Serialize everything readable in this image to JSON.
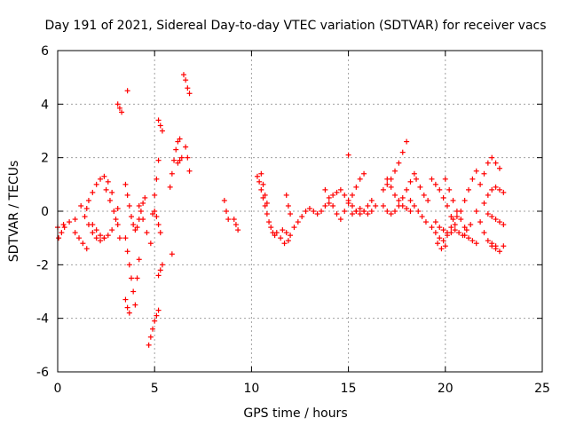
{
  "chart_data": {
    "type": "scatter",
    "title": "Day 191 of 2021, Sidereal Day-to-day VTEC variation (SDTVAR) for receiver vacs",
    "xlabel": "GPS time / hours",
    "ylabel": "SDTVAR / TECUs",
    "xlim": [
      0,
      25
    ],
    "ylim": [
      -6,
      6
    ],
    "xticks": [
      "0",
      "5",
      "10",
      "15",
      "20",
      "25"
    ],
    "yticks": [
      "-6",
      "-4",
      "-2",
      "0",
      "2",
      "4",
      "6"
    ],
    "grid": true,
    "marker": "+",
    "marker_color": "#ff0000",
    "series_segments": [
      {
        "x": [
          0.0,
          0.3,
          0.6,
          0.9
        ],
        "y": [
          -0.6,
          -0.5,
          -0.4,
          -0.3
        ]
      },
      {
        "x": [
          0.05,
          0.2,
          0.35
        ],
        "y": [
          -1.0,
          -0.8,
          -0.6
        ]
      },
      {
        "x": [
          0.9,
          1.1,
          1.3,
          1.5
        ],
        "y": [
          -0.8,
          -1.0,
          -1.2,
          -1.4
        ]
      },
      {
        "x": [
          1.5,
          1.6,
          1.8,
          2.0,
          2.2,
          2.4,
          2.6,
          2.8
        ],
        "y": [
          0.1,
          0.4,
          0.7,
          1.0,
          1.2,
          1.3,
          1.1,
          0.7
        ]
      },
      {
        "x": [
          1.2,
          1.4,
          1.6,
          1.8,
          2.0,
          2.2,
          2.4,
          2.6,
          2.8,
          3.0,
          3.1
        ],
        "y": [
          0.2,
          -0.2,
          -0.5,
          -0.8,
          -1.0,
          -1.1,
          -1.0,
          -0.9,
          -0.7,
          -0.3,
          0.1
        ]
      },
      {
        "x": [
          2.5,
          2.7,
          2.9,
          3.1,
          3.2
        ],
        "y": [
          0.8,
          0.4,
          0.0,
          -0.5,
          -1.0
        ]
      },
      {
        "x": [
          1.8,
          2.0,
          2.2,
          2.4
        ],
        "y": [
          -0.5,
          -0.7,
          -0.9,
          -1.0
        ]
      },
      {
        "x": [
          3.1,
          3.2,
          3.3
        ],
        "y": [
          4.0,
          3.85,
          3.7
        ]
      },
      {
        "x": [
          3.6
        ],
        "y": [
          4.5
        ]
      },
      {
        "x": [
          3.5,
          3.6,
          3.7,
          3.8,
          3.9,
          4.0,
          4.1,
          4.2
        ],
        "y": [
          -1.0,
          -1.5,
          -2.0,
          -2.5,
          -3.0,
          -3.5,
          -2.5,
          -1.8
        ]
      },
      {
        "x": [
          3.5,
          3.6,
          3.7
        ],
        "y": [
          -3.3,
          -3.6,
          -3.8
        ]
      },
      {
        "x": [
          3.5,
          3.6,
          3.7,
          3.8,
          3.9,
          4.0,
          4.1,
          4.2,
          4.3,
          4.4,
          4.5
        ],
        "y": [
          1.0,
          0.6,
          0.2,
          -0.2,
          -0.5,
          -0.7,
          -0.6,
          -0.3,
          0.0,
          0.3,
          0.5
        ]
      },
      {
        "x": [
          4.2,
          4.4,
          4.6,
          4.8
        ],
        "y": [
          0.2,
          -0.3,
          -0.8,
          -1.2
        ]
      },
      {
        "x": [
          4.7,
          4.8,
          4.9,
          5.0,
          5.1,
          5.2
        ],
        "y": [
          -5.0,
          -4.7,
          -4.4,
          -4.1,
          -3.9,
          -3.7
        ]
      },
      {
        "x": [
          4.9,
          5.0,
          5.1,
          5.2
        ],
        "y": [
          -0.1,
          0.6,
          1.2,
          1.9
        ]
      },
      {
        "x": [
          5.0,
          5.1,
          5.2,
          5.3
        ],
        "y": [
          0.0,
          -0.2,
          -0.5,
          -0.8
        ]
      },
      {
        "x": [
          5.2,
          5.3,
          5.4
        ],
        "y": [
          -2.4,
          -2.2,
          -2.0
        ]
      },
      {
        "x": [
          5.2,
          5.3,
          5.4
        ],
        "y": [
          3.4,
          3.2,
          3.0
        ]
      },
      {
        "x": [
          5.8,
          5.9,
          6.0,
          6.1,
          6.2,
          6.3
        ],
        "y": [
          0.9,
          1.4,
          1.9,
          2.3,
          2.6,
          2.7
        ]
      },
      {
        "x": [
          5.9
        ],
        "y": [
          -1.6
        ]
      },
      {
        "x": [
          6.2,
          6.3,
          6.4
        ],
        "y": [
          1.8,
          1.9,
          2.0
        ]
      },
      {
        "x": [
          6.5,
          6.6,
          6.7,
          6.8
        ],
        "y": [
          5.1,
          4.9,
          4.6,
          4.4
        ]
      },
      {
        "x": [
          6.6,
          6.7,
          6.8
        ],
        "y": [
          2.4,
          2.0,
          1.5
        ]
      },
      {
        "x": [
          8.6,
          8.7,
          8.8
        ],
        "y": [
          0.4,
          0.0,
          -0.3
        ]
      },
      {
        "x": [
          9.1,
          9.2,
          9.3
        ],
        "y": [
          -0.3,
          -0.5,
          -0.7
        ]
      },
      {
        "x": [
          10.3,
          10.4,
          10.5,
          10.6,
          10.7,
          10.8,
          10.9,
          11.0,
          11.1,
          11.2
        ],
        "y": [
          1.3,
          1.1,
          0.8,
          0.5,
          0.2,
          -0.1,
          -0.4,
          -0.6,
          -0.8,
          -0.9
        ]
      },
      {
        "x": [
          10.5,
          10.6,
          10.7,
          10.8
        ],
        "y": [
          1.4,
          1.0,
          0.6,
          0.3
        ]
      },
      {
        "x": [
          11.3,
          11.5,
          11.7,
          11.9
        ],
        "y": [
          -0.8,
          -1.0,
          -1.2,
          -1.1
        ]
      },
      {
        "x": [
          11.6,
          11.8,
          12.0
        ],
        "y": [
          -0.7,
          -0.8,
          -0.9
        ]
      },
      {
        "x": [
          11.8,
          11.9,
          12.0
        ],
        "y": [
          0.6,
          0.2,
          -0.1
        ]
      },
      {
        "x": [
          12.2,
          12.4,
          12.6,
          12.8,
          13.0,
          13.2,
          13.4,
          13.6,
          13.8,
          14.0
        ],
        "y": [
          -0.6,
          -0.4,
          -0.2,
          0.0,
          0.1,
          0.0,
          -0.1,
          0.0,
          0.2,
          0.3
        ]
      },
      {
        "x": [
          13.8,
          14.0,
          14.2,
          14.4,
          14.6,
          14.8,
          15.0,
          15.2,
          15.4,
          15.6,
          15.8
        ],
        "y": [
          0.8,
          0.5,
          0.2,
          -0.1,
          -0.3,
          0.0,
          0.3,
          0.6,
          0.9,
          1.2,
          1.4
        ]
      },
      {
        "x": [
          14.2,
          14.4,
          14.6,
          14.8,
          15.0,
          15.2,
          15.4,
          15.6,
          15.8,
          16.0,
          16.2
        ],
        "y": [
          0.6,
          0.7,
          0.8,
          0.6,
          0.4,
          0.2,
          0.0,
          -0.1,
          0.0,
          0.2,
          0.4
        ]
      },
      {
        "x": [
          15.0
        ],
        "y": [
          2.1
        ]
      },
      {
        "x": [
          15.2,
          15.4,
          15.6,
          15.8,
          16.0,
          16.2,
          16.4
        ],
        "y": [
          -0.1,
          0.0,
          0.1,
          0.0,
          -0.1,
          0.0,
          0.2
        ]
      },
      {
        "x": [
          16.8,
          17.0,
          17.2,
          17.4,
          17.6,
          17.8,
          18.0
        ],
        "y": [
          0.8,
          1.0,
          1.2,
          1.5,
          1.8,
          2.2,
          2.6
        ]
      },
      {
        "x": [
          16.8,
          17.0,
          17.2,
          17.4,
          17.6,
          17.8,
          18.0,
          18.2,
          18.4
        ],
        "y": [
          0.2,
          0.0,
          -0.1,
          0.0,
          0.2,
          0.5,
          0.8,
          1.1,
          1.4
        ]
      },
      {
        "x": [
          17.0,
          17.2,
          17.4,
          17.6,
          17.8,
          18.0,
          18.2
        ],
        "y": [
          1.2,
          0.9,
          0.6,
          0.4,
          0.2,
          0.1,
          0.0
        ]
      },
      {
        "x": [
          18.2,
          18.4,
          18.6,
          18.8,
          19.0
        ],
        "y": [
          0.4,
          0.2,
          0.0,
          -0.2,
          -0.4
        ]
      },
      {
        "x": [
          18.5,
          18.7,
          18.9,
          19.1
        ],
        "y": [
          1.2,
          0.9,
          0.6,
          0.4
        ]
      },
      {
        "x": [
          19.3,
          19.5,
          19.7,
          19.9,
          20.1,
          20.3
        ],
        "y": [
          -0.6,
          -0.8,
          -1.0,
          -1.1,
          -0.9,
          -0.6
        ]
      },
      {
        "x": [
          19.3,
          19.5,
          19.7,
          19.9,
          20.1,
          20.3,
          20.5
        ],
        "y": [
          1.2,
          1.0,
          0.8,
          0.5,
          0.2,
          -0.2,
          -0.5
        ]
      },
      {
        "x": [
          19.5,
          19.7,
          19.9,
          20.1,
          20.3,
          20.5,
          20.7,
          20.9,
          21.1,
          21.3
        ],
        "y": [
          -0.4,
          -0.6,
          -0.7,
          -0.8,
          -0.8,
          -0.7,
          -0.8,
          -0.9,
          -0.7,
          -0.5
        ]
      },
      {
        "x": [
          19.6,
          19.8,
          20.0
        ],
        "y": [
          -1.2,
          -1.4,
          -1.3
        ]
      },
      {
        "x": [
          20.0,
          20.2,
          20.4,
          20.6,
          20.8,
          21.0
        ],
        "y": [
          1.2,
          0.8,
          0.4,
          0.0,
          -0.3,
          -0.6
        ]
      },
      {
        "x": [
          20.4,
          20.6,
          20.8,
          21.0,
          21.2,
          21.4,
          21.6
        ],
        "y": [
          -0.3,
          -0.2,
          0.0,
          0.4,
          0.8,
          1.2,
          1.5
        ]
      },
      {
        "x": [
          21.0,
          21.2,
          21.4,
          21.6
        ],
        "y": [
          -0.9,
          -1.0,
          -1.1,
          -1.2
        ]
      },
      {
        "x": [
          21.6,
          21.8,
          22.0,
          22.2,
          22.4,
          22.6
        ],
        "y": [
          0.0,
          -0.4,
          -0.8,
          -1.1,
          -1.3,
          -1.4
        ]
      },
      {
        "x": [
          21.8,
          22.0,
          22.2,
          22.4,
          22.6,
          22.8
        ],
        "y": [
          1.0,
          1.4,
          1.8,
          2.0,
          1.8,
          1.6
        ]
      },
      {
        "x": [
          22.0,
          22.2,
          22.4,
          22.6,
          22.8,
          23.0
        ],
        "y": [
          0.3,
          0.6,
          0.8,
          0.9,
          0.8,
          0.7
        ]
      },
      {
        "x": [
          22.4,
          22.6,
          22.8,
          23.0
        ],
        "y": [
          -1.2,
          -1.3,
          -1.5,
          -1.3
        ]
      },
      {
        "x": [
          22.2,
          22.4,
          22.6,
          22.8,
          23.0
        ],
        "y": [
          -0.1,
          -0.2,
          -0.3,
          -0.4,
          -0.5
        ]
      }
    ]
  }
}
